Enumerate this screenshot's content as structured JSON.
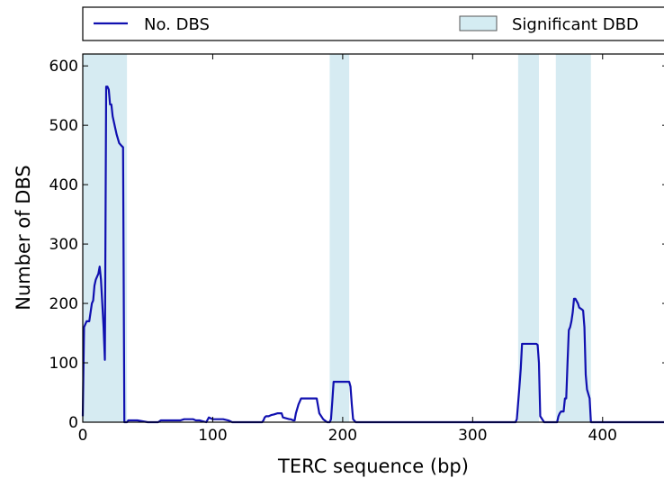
{
  "chart_data": {
    "type": "line",
    "title": "",
    "xlabel": "TERC sequence (bp)",
    "ylabel": "Number of DBS",
    "xlim": [
      0,
      450
    ],
    "ylim": [
      0,
      620
    ],
    "xticks": [
      0,
      100,
      200,
      300,
      400
    ],
    "yticks": [
      0,
      100,
      200,
      300,
      400,
      500,
      600
    ],
    "grid": false,
    "legend": {
      "placement": "top, above plot",
      "entries": [
        {
          "label": "No. DBS",
          "kind": "line"
        },
        {
          "label": "Significant DBD",
          "kind": "patch"
        }
      ]
    },
    "colors": {
      "line": "#1010b0",
      "band_fill": "#add8e6",
      "band_opacity": 0.5
    },
    "significant_regions": [
      [
        0,
        34
      ],
      [
        190,
        205
      ],
      [
        335,
        351
      ],
      [
        364,
        391
      ]
    ],
    "series": [
      {
        "name": "No. DBS",
        "x": [
          0,
          1,
          3,
          5,
          7,
          8,
          9,
          10,
          12,
          13,
          14,
          15,
          16,
          17,
          18,
          19,
          20,
          21,
          22,
          23,
          24,
          25,
          26,
          28,
          30,
          31,
          32,
          33,
          34,
          35,
          38,
          40,
          42,
          50,
          52,
          58,
          60,
          75,
          78,
          85,
          87,
          90,
          95,
          97,
          100,
          102,
          108,
          112,
          115,
          118,
          125,
          138,
          139,
          140,
          141,
          143,
          145,
          147,
          150,
          152,
          153,
          154,
          159,
          160,
          162,
          163,
          164,
          166,
          167,
          168,
          175,
          179,
          180,
          182,
          185,
          188,
          189,
          190,
          191,
          192,
          193,
          205,
          206,
          207,
          208,
          210,
          220,
          300,
          330,
          333,
          334,
          336,
          337,
          338,
          339,
          340,
          349,
          350,
          351,
          352,
          355,
          360,
          364,
          365,
          366,
          367,
          368,
          369,
          370,
          371,
          372,
          373,
          374,
          375,
          376,
          377,
          378,
          379,
          381,
          382,
          384,
          385,
          386,
          387,
          388,
          390,
          391,
          392,
          395,
          420,
          450
        ],
        "y": [
          10,
          160,
          170,
          170,
          200,
          205,
          230,
          240,
          250,
          262,
          240,
          200,
          160,
          105,
          565,
          565,
          560,
          535,
          535,
          515,
          505,
          495,
          485,
          470,
          465,
          463,
          0,
          0,
          0,
          3,
          3,
          3,
          3,
          0,
          0,
          0,
          3,
          3,
          5,
          5,
          3,
          3,
          0,
          8,
          5,
          5,
          5,
          3,
          0,
          0,
          0,
          0,
          3,
          8,
          10,
          10,
          12,
          13,
          15,
          15,
          15,
          8,
          5,
          5,
          3,
          3,
          15,
          30,
          35,
          40,
          40,
          40,
          40,
          15,
          5,
          0,
          0,
          0,
          5,
          35,
          68,
          68,
          60,
          30,
          5,
          0,
          0,
          0,
          0,
          0,
          5,
          60,
          90,
          132,
          132,
          132,
          132,
          130,
          100,
          10,
          0,
          0,
          0,
          0,
          10,
          15,
          18,
          18,
          18,
          40,
          40,
          100,
          155,
          160,
          170,
          185,
          208,
          208,
          200,
          193,
          190,
          188,
          160,
          80,
          55,
          40,
          0,
          0,
          0,
          0,
          0
        ]
      }
    ]
  }
}
